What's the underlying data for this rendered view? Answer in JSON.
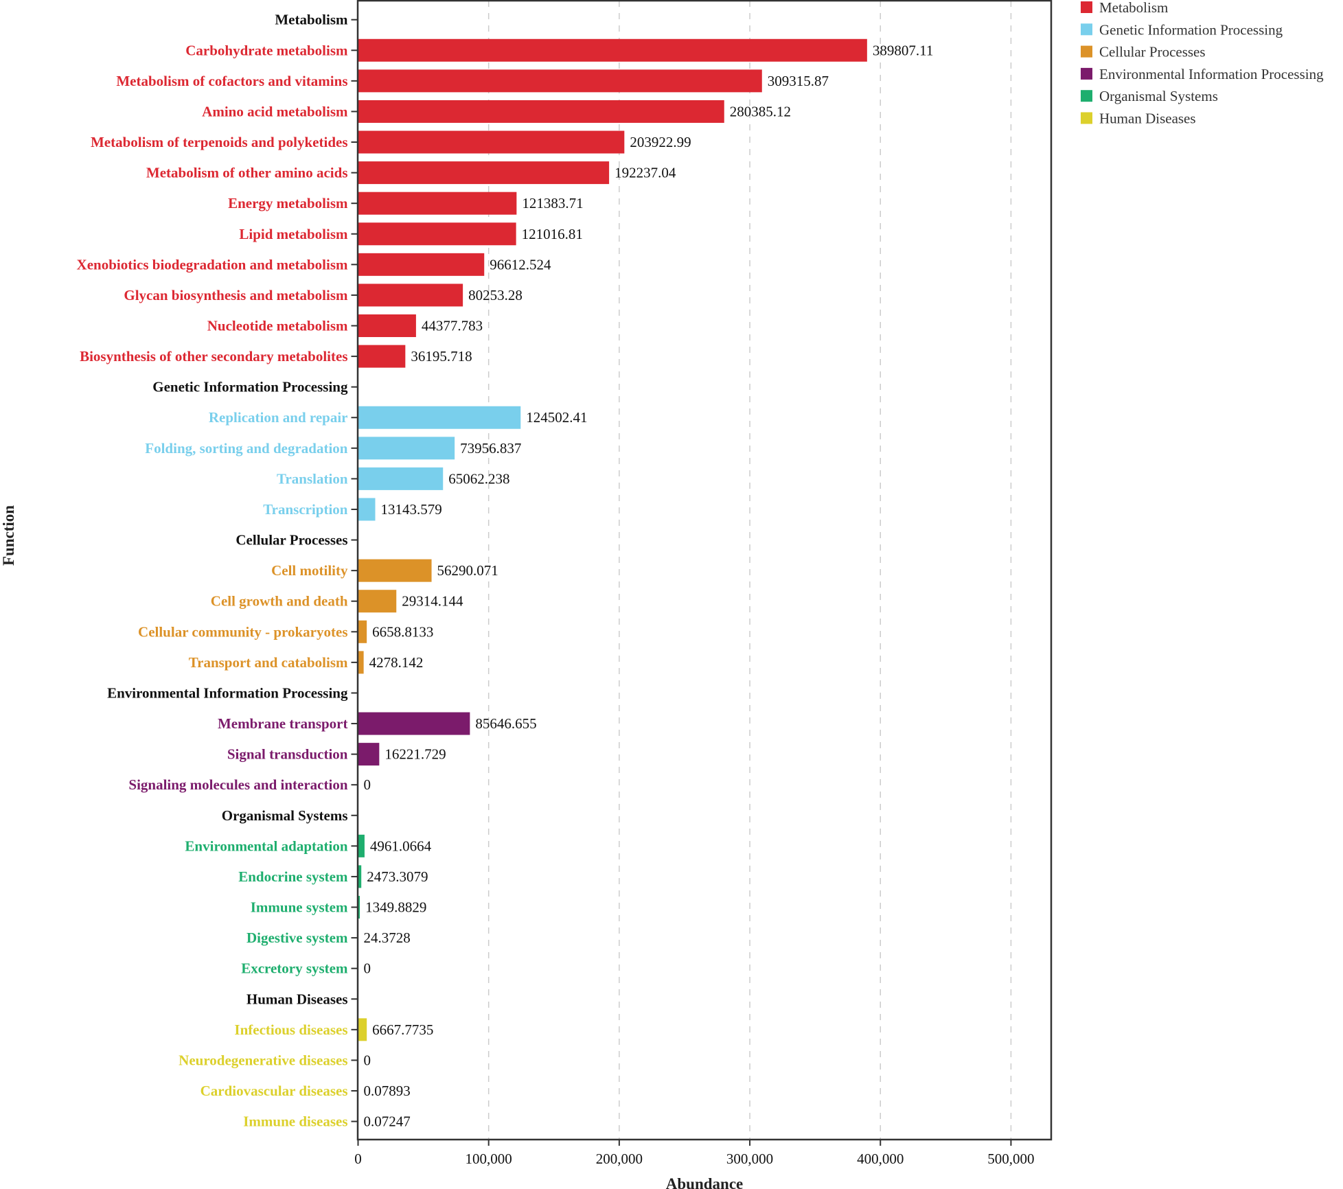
{
  "chart_data": {
    "type": "bar",
    "orientation": "horizontal",
    "title": "",
    "xlabel": "Abundance",
    "ylabel": "Function",
    "xlim": [
      0,
      530800
    ],
    "x_ticks": [
      0,
      100000,
      200000,
      300000,
      400000,
      500000
    ],
    "x_tick_labels": [
      "0",
      "100,000",
      "200,000",
      "300,000",
      "400,000",
      "500,000"
    ],
    "grid": "vertical dashed",
    "legend_position": "top-right outside",
    "groups": [
      {
        "name": "Metabolism",
        "color": "#dc2832",
        "categories": [
          {
            "label": "Carbohydrate metabolism",
            "value": 389807.11,
            "value_label": "389807.11"
          },
          {
            "label": "Metabolism of cofactors and vitamins",
            "value": 309315.87,
            "value_label": "309315.87"
          },
          {
            "label": "Amino acid metabolism",
            "value": 280385.12,
            "value_label": "280385.12"
          },
          {
            "label": "Metabolism of terpenoids and polyketides",
            "value": 203922.99,
            "value_label": "203922.99"
          },
          {
            "label": "Metabolism of other amino acids",
            "value": 192237.04,
            "value_label": "192237.04"
          },
          {
            "label": "Energy metabolism",
            "value": 121383.71,
            "value_label": "121383.71"
          },
          {
            "label": "Lipid metabolism",
            "value": 121016.81,
            "value_label": "121016.81"
          },
          {
            "label": "Xenobiotics biodegradation and metabolism",
            "value": 96612.524,
            "value_label": "96612.524"
          },
          {
            "label": "Glycan biosynthesis and metabolism",
            "value": 80253.28,
            "value_label": "80253.28"
          },
          {
            "label": "Nucleotide metabolism",
            "value": 44377.783,
            "value_label": "44377.783"
          },
          {
            "label": "Biosynthesis of other secondary metabolites",
            "value": 36195.718,
            "value_label": "36195.718"
          }
        ]
      },
      {
        "name": "Genetic Information Processing",
        "color": "#79cfec",
        "categories": [
          {
            "label": "Replication and repair",
            "value": 124502.41,
            "value_label": "124502.41"
          },
          {
            "label": "Folding, sorting and degradation",
            "value": 73956.837,
            "value_label": "73956.837"
          },
          {
            "label": "Translation",
            "value": 65062.238,
            "value_label": "65062.238"
          },
          {
            "label": "Transcription",
            "value": 13143.579,
            "value_label": "13143.579"
          }
        ]
      },
      {
        "name": "Cellular Processes",
        "color": "#dc9228",
        "categories": [
          {
            "label": "Cell motility",
            "value": 56290.071,
            "value_label": "56290.071"
          },
          {
            "label": "Cell growth and death",
            "value": 29314.144,
            "value_label": "29314.144"
          },
          {
            "label": "Cellular community - prokaryotes",
            "value": 6658.8133,
            "value_label": "6658.8133"
          },
          {
            "label": "Transport and catabolism",
            "value": 4278.142,
            "value_label": "4278.142"
          }
        ]
      },
      {
        "name": "Environmental Information Processing",
        "color": "#7b1b6b",
        "categories": [
          {
            "label": "Membrane transport",
            "value": 85646.655,
            "value_label": "85646.655"
          },
          {
            "label": "Signal transduction",
            "value": 16221.729,
            "value_label": "16221.729"
          },
          {
            "label": "Signaling molecules and interaction",
            "value": 0,
            "value_label": "0"
          }
        ]
      },
      {
        "name": "Organismal Systems",
        "color": "#1eae6e",
        "categories": [
          {
            "label": "Environmental adaptation",
            "value": 4961.0664,
            "value_label": "4961.0664"
          },
          {
            "label": "Endocrine system",
            "value": 2473.3079,
            "value_label": "2473.3079"
          },
          {
            "label": "Immune system",
            "value": 1349.8829,
            "value_label": "1349.8829"
          },
          {
            "label": "Digestive system",
            "value": 24.3728,
            "value_label": "24.3728"
          },
          {
            "label": "Excretory system",
            "value": 0,
            "value_label": "0"
          }
        ]
      },
      {
        "name": "Human Diseases",
        "color": "#dcd02c",
        "categories": [
          {
            "label": "Infectious diseases",
            "value": 6667.7735,
            "value_label": "6667.7735"
          },
          {
            "label": "Neurodegenerative diseases",
            "value": 0,
            "value_label": "0"
          },
          {
            "label": "Cardiovascular diseases",
            "value": 0.07893,
            "value_label": "0.07893"
          },
          {
            "label": "Immune diseases",
            "value": 0.07247,
            "value_label": "0.07247"
          }
        ]
      }
    ],
    "legend": [
      {
        "label": "Metabolism",
        "color": "#dc2832"
      },
      {
        "label": "Genetic Information Processing",
        "color": "#79cfec"
      },
      {
        "label": "Cellular Processes",
        "color": "#dc9228"
      },
      {
        "label": "Environmental Information Processing",
        "color": "#7b1b6b"
      },
      {
        "label": "Organismal Systems",
        "color": "#1eae6e"
      },
      {
        "label": "Human Diseases",
        "color": "#dcd02c"
      }
    ],
    "group_header_color": "#111111"
  }
}
